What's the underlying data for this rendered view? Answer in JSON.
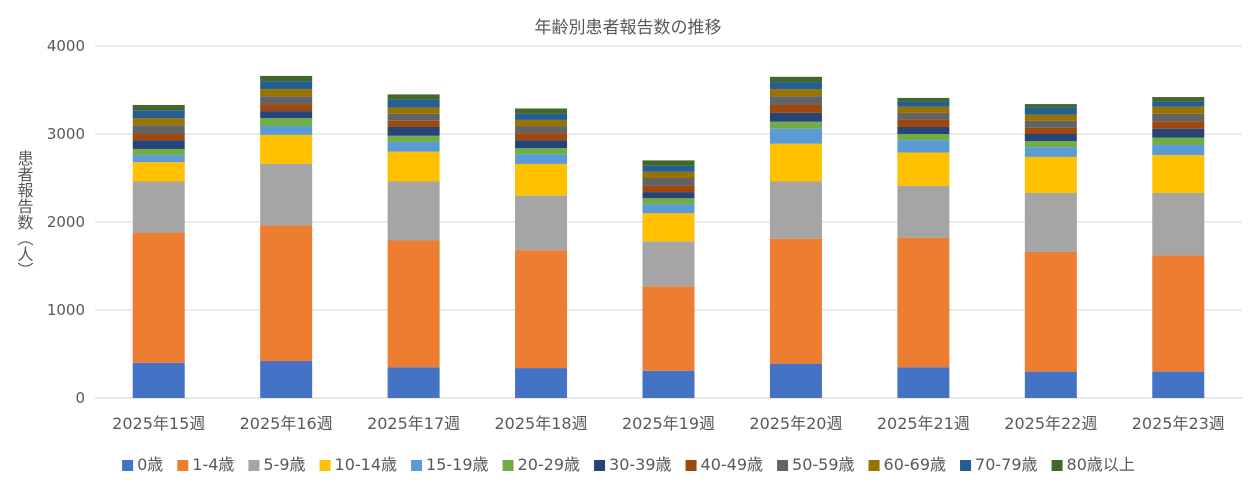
{
  "chart_data": {
    "type": "bar",
    "stacked": true,
    "title": "年齢別患者報告数の推移",
    "ylabel": "患者報告数（人）",
    "xlabel": "",
    "ylim": [
      0,
      4000
    ],
    "yticks": [
      0,
      1000,
      2000,
      3000,
      4000
    ],
    "grid": true,
    "legend_position": "bottom",
    "categories": [
      "2025年15週",
      "2025年16週",
      "2025年17週",
      "2025年18週",
      "2025年19週",
      "2025年20週",
      "2025年21週",
      "2025年22週",
      "2025年23週"
    ],
    "series": [
      {
        "name": "0歳",
        "color": "#4472C4",
        "values": [
          400,
          420,
          350,
          340,
          310,
          390,
          350,
          300,
          300
        ]
      },
      {
        "name": "1-4歳",
        "color": "#ED7D31",
        "values": [
          1480,
          1540,
          1440,
          1340,
          960,
          1420,
          1470,
          1360,
          1320
        ]
      },
      {
        "name": "5-9歳",
        "color": "#A5A5A5",
        "values": [
          580,
          700,
          670,
          620,
          510,
          650,
          590,
          670,
          710
        ]
      },
      {
        "name": "10-14歳",
        "color": "#FFC000",
        "values": [
          220,
          330,
          340,
          360,
          320,
          430,
          380,
          410,
          430
        ]
      },
      {
        "name": "15-19歳",
        "color": "#5B9BD5",
        "values": [
          80,
          100,
          110,
          110,
          100,
          170,
          140,
          110,
          120
        ]
      },
      {
        "name": "20-29歳",
        "color": "#70AD47",
        "values": [
          70,
          90,
          70,
          70,
          70,
          80,
          70,
          70,
          80
        ]
      },
      {
        "name": "30-39歳",
        "color": "#264478",
        "values": [
          100,
          80,
          100,
          90,
          70,
          100,
          80,
          80,
          100
        ]
      },
      {
        "name": "40-49歳",
        "color": "#9E480E",
        "values": [
          70,
          80,
          70,
          80,
          70,
          90,
          80,
          70,
          80
        ]
      },
      {
        "name": "50-59歳",
        "color": "#636363",
        "values": [
          100,
          90,
          80,
          80,
          90,
          100,
          80,
          80,
          90
        ]
      },
      {
        "name": "60-69歳",
        "color": "#997300",
        "values": [
          80,
          80,
          70,
          70,
          70,
          80,
          70,
          70,
          80
        ]
      },
      {
        "name": "70-79歳",
        "color": "#255E91",
        "values": [
          90,
          90,
          90,
          70,
          70,
          80,
          60,
          80,
          60
        ]
      },
      {
        "name": "80歳以上",
        "color": "#43682B",
        "values": [
          60,
          60,
          60,
          60,
          60,
          60,
          40,
          40,
          50
        ]
      }
    ]
  }
}
